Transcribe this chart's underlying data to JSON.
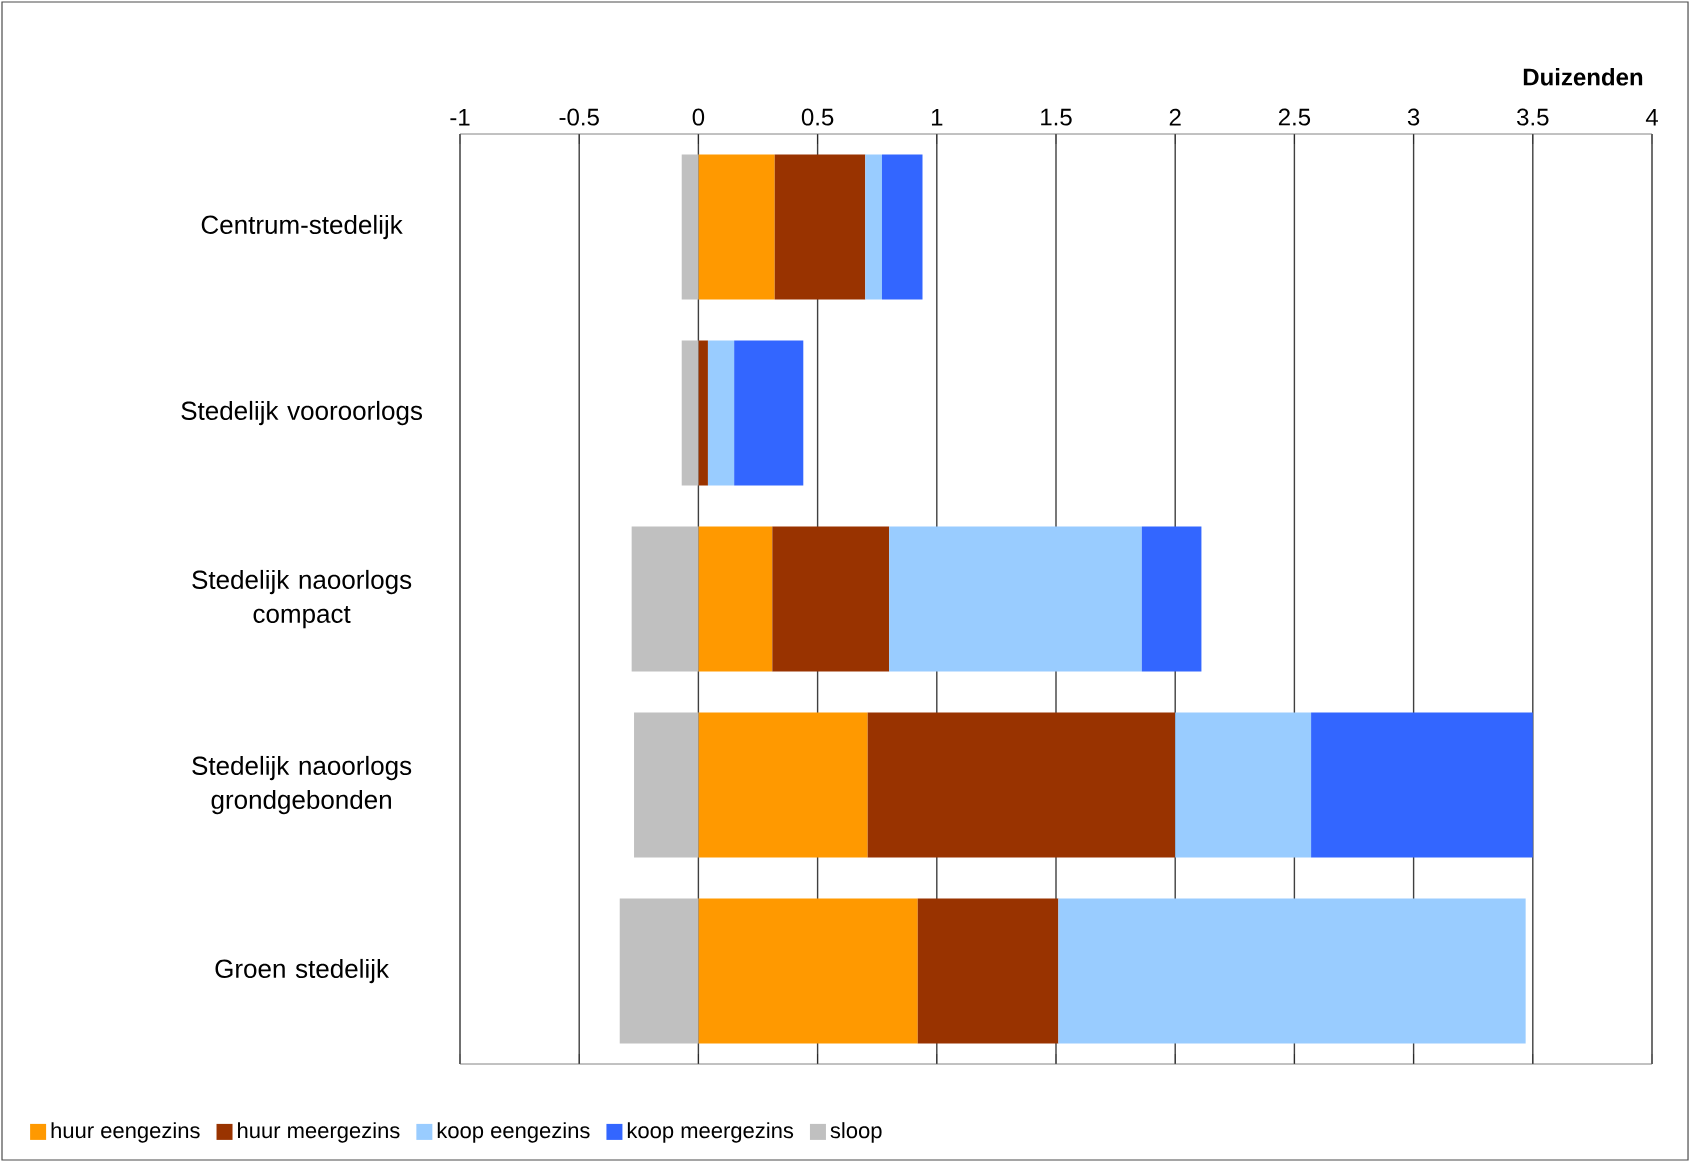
{
  "chart_data": {
    "type": "bar",
    "orientation": "horizontal",
    "stacked": true,
    "xlabel": "Duizenden",
    "categories": [
      "Centrum-stedelijk",
      "Stedelijk vooroorlogs",
      "Stedelijk naoorlogs compact",
      "Stedelijk naoorlogs grondgebonden",
      "Groen stedelijk"
    ],
    "series": [
      {
        "name": "huur eengezins",
        "color": "#ff9900",
        "values": [
          0.32,
          0.0,
          0.31,
          0.71,
          0.92
        ]
      },
      {
        "name": "huur meergezins",
        "color": "#993300",
        "values": [
          0.38,
          0.04,
          0.49,
          1.29,
          0.59
        ]
      },
      {
        "name": "koop eengezins",
        "color": "#99ccff",
        "values": [
          0.07,
          0.11,
          1.06,
          0.57,
          1.96
        ]
      },
      {
        "name": "koop meergezins",
        "color": "#3366ff",
        "values": [
          0.17,
          0.29,
          0.25,
          0.93,
          0.0
        ]
      },
      {
        "name": "sloop",
        "color": "#c0c0c0",
        "values": [
          -0.07,
          -0.07,
          -0.28,
          -0.27,
          -0.33
        ]
      }
    ],
    "xlim": [
      -1,
      4
    ],
    "xticks": [
      -1,
      -0.5,
      0,
      0.5,
      1,
      1.5,
      2,
      2.5,
      3,
      3.5,
      4
    ],
    "grid": "x",
    "legend": "bottom"
  }
}
